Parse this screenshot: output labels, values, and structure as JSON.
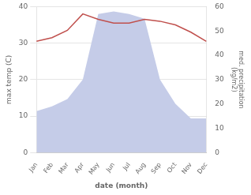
{
  "chart_data": {
    "type": "line",
    "xlabel": "date (month)",
    "ylabel": "max temp (C)",
    "y2label": "med. precipitation\n(kg/m2)",
    "categories": [
      "Jan",
      "Feb",
      "Mar",
      "Apr",
      "May",
      "Jun",
      "Jul",
      "Aug",
      "Sep",
      "Oct",
      "Nov",
      "Dec"
    ],
    "series": [
      {
        "type": "area",
        "color": "#c5cce8",
        "axis": "y2",
        "values": [
          17,
          19,
          22,
          30,
          57,
          58,
          57,
          55,
          30,
          20,
          14,
          14
        ]
      },
      {
        "type": "line",
        "color": "#c0504d",
        "values": [
          30.5,
          31.5,
          33.5,
          38.0,
          36.5,
          35.5,
          35.5,
          36.5,
          36.0,
          35.0,
          33.0,
          30.5
        ]
      }
    ],
    "ylim": [
      0,
      40
    ],
    "yticks": [
      0,
      10,
      20,
      30,
      40
    ],
    "y2lim": [
      0,
      60
    ],
    "y2ticks": [
      0,
      10,
      20,
      30,
      40,
      50,
      60
    ],
    "grid": true
  }
}
